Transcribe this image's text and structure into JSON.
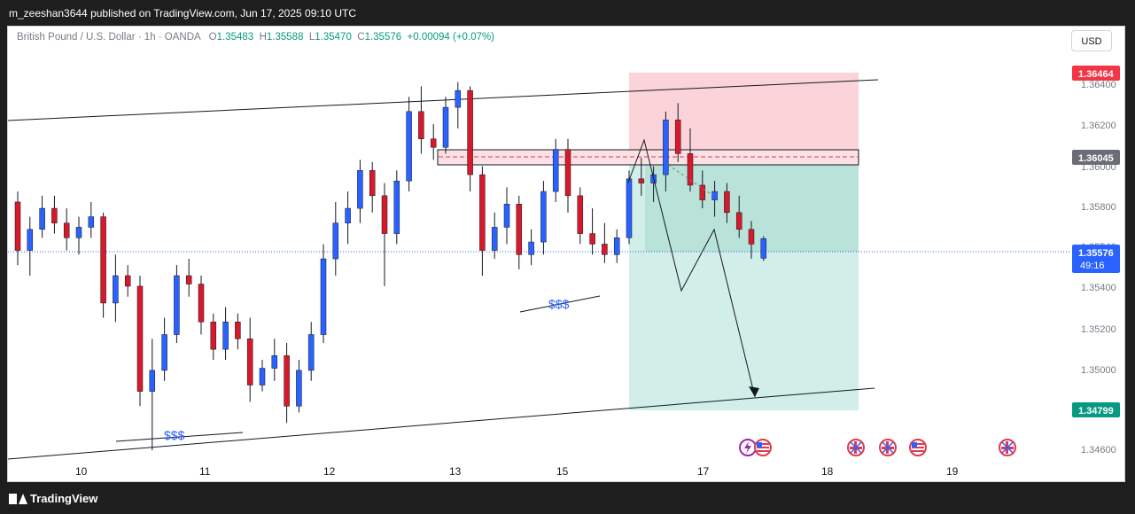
{
  "publisher_line": "m_zeeshan3644 published on TradingView.com, Jun 17, 2025 09:10 UTC",
  "legend": {
    "symbol": "British Pound / U.S. Dollar · 1h · OANDA",
    "o_label": "O",
    "o": "1.35483",
    "h_label": "H",
    "h": "1.35588",
    "l_label": "L",
    "l": "1.35470",
    "c_label": "C",
    "c": "1.35576",
    "change": "+0.00094 (+0.07%)"
  },
  "currency_button": "USD",
  "price_axis": {
    "ticks": [
      "1.36400",
      "1.36200",
      "1.36000",
      "1.35800",
      "1.35540",
      "1.35400",
      "1.35200",
      "1.35000",
      "1.34600"
    ],
    "tags": {
      "stop": "1.36464",
      "entry": "1.36045",
      "last_price": "1.35576",
      "countdown": "49:16",
      "target": "1.34799"
    }
  },
  "time_axis": [
    "10",
    "11",
    "12",
    "13",
    "15",
    "17",
    "18",
    "19"
  ],
  "annotations": {
    "liquidity_1": "$$$",
    "liquidity_2": "$$$"
  },
  "colors": {
    "up": "#2962ff",
    "down": "#d61a2c",
    "stop_zone": "#fad4d8",
    "target_zone": "#d2eee8",
    "stop_tag": "#f23645",
    "entry_tag": "#6a6d78",
    "last_tag": "#2962ff",
    "target_tag": "#089981"
  },
  "event_icons": [
    "lightning-icon",
    "us-flag-icon",
    "uk-flag-icon",
    "uk-flag-icon",
    "us-flag-icon",
    "us-flag-icon",
    "uk-flag-icon"
  ],
  "footer": {
    "brand": "TradingView"
  },
  "chart_data": {
    "type": "candlestick",
    "symbol": "GBPUSD",
    "timeframe": "1h",
    "ylim": [
      1.3452,
      1.3655
    ],
    "x_ticks": [
      "10",
      "11",
      "12",
      "13",
      "15",
      "17",
      "18",
      "19"
    ],
    "last_price": 1.35576,
    "position_short": {
      "entry": 1.36045,
      "stop": 1.36464,
      "target": 1.34799
    },
    "candles_ohlc_approx": [
      [
        1.3575,
        1.358,
        1.3545,
        1.3552
      ],
      [
        1.3552,
        1.3568,
        1.354,
        1.3562
      ],
      [
        1.3562,
        1.3578,
        1.3558,
        1.3572
      ],
      [
        1.3572,
        1.3578,
        1.356,
        1.3565
      ],
      [
        1.3565,
        1.3572,
        1.3552,
        1.3558
      ],
      [
        1.3558,
        1.3568,
        1.355,
        1.3563
      ],
      [
        1.3563,
        1.3575,
        1.3558,
        1.3568
      ],
      [
        1.3568,
        1.357,
        1.352,
        1.3527
      ],
      [
        1.3527,
        1.355,
        1.3518,
        1.354
      ],
      [
        1.354,
        1.3545,
        1.353,
        1.3535
      ],
      [
        1.3535,
        1.354,
        1.3478,
        1.3485
      ],
      [
        1.3485,
        1.351,
        1.3457,
        1.3495
      ],
      [
        1.3495,
        1.352,
        1.349,
        1.3512
      ],
      [
        1.3512,
        1.3545,
        1.3508,
        1.354
      ],
      [
        1.354,
        1.3548,
        1.353,
        1.3536
      ],
      [
        1.3536,
        1.354,
        1.3512,
        1.3518
      ],
      [
        1.3518,
        1.3522,
        1.35,
        1.3505
      ],
      [
        1.3505,
        1.3525,
        1.35,
        1.3518
      ],
      [
        1.3518,
        1.3522,
        1.3505,
        1.351
      ],
      [
        1.351,
        1.352,
        1.348,
        1.3488
      ],
      [
        1.3488,
        1.35,
        1.3485,
        1.3496
      ],
      [
        1.3496,
        1.351,
        1.349,
        1.3502
      ],
      [
        1.3502,
        1.3508,
        1.347,
        1.3478
      ],
      [
        1.3478,
        1.35,
        1.3475,
        1.3495
      ],
      [
        1.3495,
        1.3518,
        1.349,
        1.3512
      ],
      [
        1.3512,
        1.3555,
        1.3508,
        1.3548
      ],
      [
        1.3548,
        1.3575,
        1.354,
        1.3565
      ],
      [
        1.3565,
        1.358,
        1.3555,
        1.3572
      ],
      [
        1.3572,
        1.3595,
        1.3565,
        1.359
      ],
      [
        1.359,
        1.3594,
        1.357,
        1.3578
      ],
      [
        1.3578,
        1.3584,
        1.3535,
        1.356
      ],
      [
        1.356,
        1.359,
        1.3555,
        1.3585
      ],
      [
        1.3585,
        1.3625,
        1.358,
        1.3618
      ],
      [
        1.3618,
        1.363,
        1.3598,
        1.3605
      ],
      [
        1.3605,
        1.3612,
        1.3595,
        1.3601
      ],
      [
        1.3601,
        1.3625,
        1.3598,
        1.362
      ],
      [
        1.362,
        1.3632,
        1.361,
        1.3628
      ],
      [
        1.3628,
        1.363,
        1.358,
        1.3588
      ],
      [
        1.3588,
        1.3592,
        1.354,
        1.3552
      ],
      [
        1.3552,
        1.357,
        1.3548,
        1.3563
      ],
      [
        1.3563,
        1.3582,
        1.3555,
        1.3574
      ],
      [
        1.3574,
        1.3578,
        1.3543,
        1.355
      ],
      [
        1.355,
        1.3562,
        1.3545,
        1.3556
      ],
      [
        1.3556,
        1.3585,
        1.355,
        1.358
      ],
      [
        1.358,
        1.3605,
        1.3575,
        1.36
      ],
      [
        1.36,
        1.3605,
        1.357,
        1.3578
      ],
      [
        1.3578,
        1.3582,
        1.3555,
        1.356
      ],
      [
        1.356,
        1.3572,
        1.355,
        1.3555
      ],
      [
        1.3555,
        1.3565,
        1.3546,
        1.355
      ],
      [
        1.355,
        1.3562,
        1.3546,
        1.3558
      ],
      [
        1.3558,
        1.359,
        1.3555,
        1.3586
      ],
      [
        1.3586,
        1.3596,
        1.3578,
        1.3584
      ],
      [
        1.3584,
        1.3592,
        1.3575,
        1.3588
      ],
      [
        1.3588,
        1.3618,
        1.358,
        1.3614
      ],
      [
        1.3614,
        1.3622,
        1.3594,
        1.3598
      ],
      [
        1.3598,
        1.361,
        1.358,
        1.3583
      ],
      [
        1.3583,
        1.359,
        1.3572,
        1.3576
      ],
      [
        1.3576,
        1.3585,
        1.3568,
        1.358
      ],
      [
        1.358,
        1.3584,
        1.3565,
        1.357
      ],
      [
        1.357,
        1.3578,
        1.3558,
        1.3562
      ],
      [
        1.3562,
        1.3566,
        1.3548,
        1.3555
      ],
      [
        1.35483,
        1.35588,
        1.3547,
        1.35576
      ]
    ]
  }
}
